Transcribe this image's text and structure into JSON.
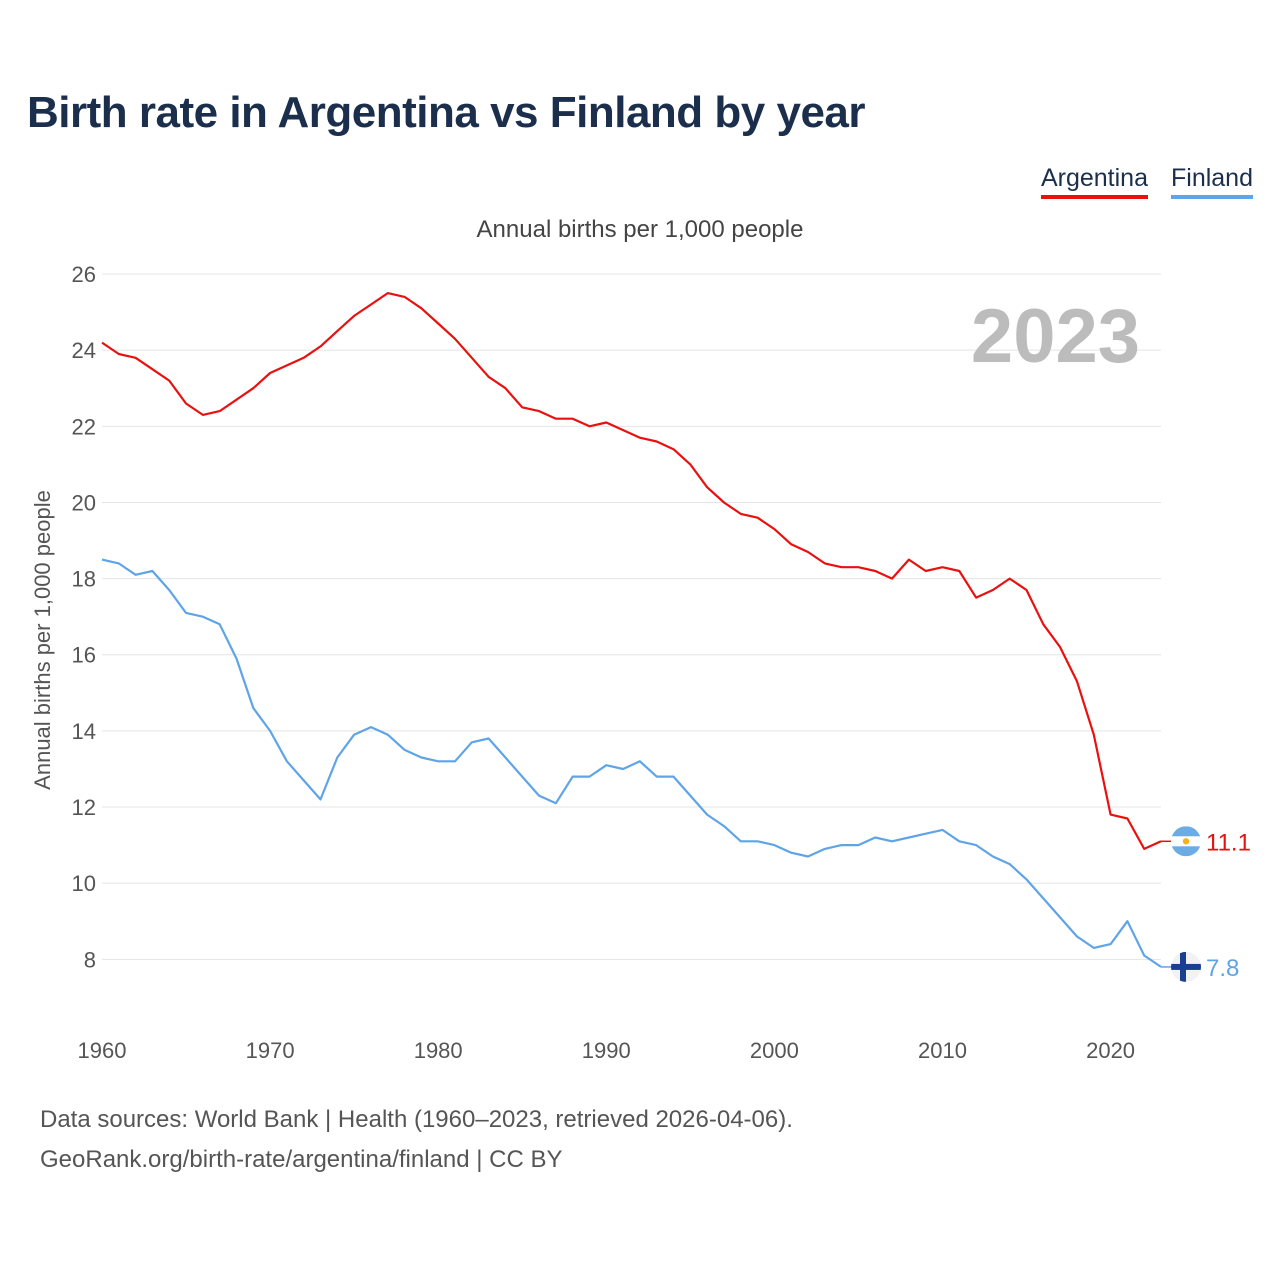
{
  "chart_data": {
    "type": "line",
    "title": "Birth rate in Argentina vs Finland by year",
    "subtitle": "Annual births per 1,000 people",
    "ylabel": "Annual births per 1,000 people",
    "xlabel": "",
    "highlight_year": "2023",
    "xlim": [
      1960,
      2023
    ],
    "ylim": [
      6.8,
      26.5
    ],
    "x_ticks": [
      1960,
      1970,
      1980,
      1990,
      2000,
      2010,
      2020
    ],
    "y_ticks": [
      8,
      10,
      12,
      14,
      16,
      18,
      20,
      22,
      24,
      26
    ],
    "x": [
      1960,
      1961,
      1962,
      1963,
      1964,
      1965,
      1966,
      1967,
      1968,
      1969,
      1970,
      1971,
      1972,
      1973,
      1974,
      1975,
      1976,
      1977,
      1978,
      1979,
      1980,
      1981,
      1982,
      1983,
      1984,
      1985,
      1986,
      1987,
      1988,
      1989,
      1990,
      1991,
      1992,
      1993,
      1994,
      1995,
      1996,
      1997,
      1998,
      1999,
      2000,
      2001,
      2002,
      2003,
      2004,
      2005,
      2006,
      2007,
      2008,
      2009,
      2010,
      2011,
      2012,
      2013,
      2014,
      2015,
      2016,
      2017,
      2018,
      2019,
      2020,
      2021,
      2022,
      2023
    ],
    "series": [
      {
        "name": "Argentina",
        "color": "#e8110f",
        "end_label": "11.1",
        "flag": "argentina-flag-icon",
        "values": [
          24.2,
          23.9,
          23.8,
          23.5,
          23.2,
          22.6,
          22.3,
          22.4,
          22.7,
          23.0,
          23.4,
          23.6,
          23.8,
          24.1,
          24.5,
          24.9,
          25.2,
          25.5,
          25.4,
          25.1,
          24.7,
          24.3,
          23.8,
          23.3,
          23.0,
          22.5,
          22.4,
          22.2,
          22.2,
          22.0,
          22.1,
          21.9,
          21.7,
          21.6,
          21.4,
          21.0,
          20.4,
          20.0,
          19.7,
          19.6,
          19.3,
          18.9,
          18.7,
          18.4,
          18.3,
          18.3,
          18.2,
          18.0,
          18.5,
          18.2,
          18.3,
          18.2,
          17.5,
          17.7,
          18.0,
          17.7,
          16.8,
          16.2,
          15.3,
          13.9,
          11.8,
          11.7,
          10.9,
          11.1
        ]
      },
      {
        "name": "Finland",
        "color": "#5ea4e7",
        "end_label": "7.8",
        "flag": "finland-flag-icon",
        "values": [
          18.5,
          18.4,
          18.1,
          18.2,
          17.7,
          17.1,
          17.0,
          16.8,
          15.9,
          14.6,
          14.0,
          13.2,
          12.7,
          12.2,
          13.3,
          13.9,
          14.1,
          13.9,
          13.5,
          13.3,
          13.2,
          13.2,
          13.7,
          13.8,
          13.3,
          12.8,
          12.3,
          12.1,
          12.8,
          12.8,
          13.1,
          13.0,
          13.2,
          12.8,
          12.8,
          12.3,
          11.8,
          11.5,
          11.1,
          11.1,
          11.0,
          10.8,
          10.7,
          10.9,
          11.0,
          11.0,
          11.2,
          11.1,
          11.2,
          11.3,
          11.4,
          11.1,
          11.0,
          10.7,
          10.5,
          10.1,
          9.6,
          9.1,
          8.6,
          8.3,
          8.4,
          9.0,
          8.1,
          7.8
        ]
      }
    ],
    "legend": [
      "Argentina",
      "Finland"
    ],
    "grid": true,
    "legend_position": "top-right"
  },
  "footer": {
    "source": "Data sources: World Bank | Health (1960–2023, retrieved 2026-04-06).",
    "link": "GeoRank.org/birth-rate/argentina/finland | CC BY"
  }
}
